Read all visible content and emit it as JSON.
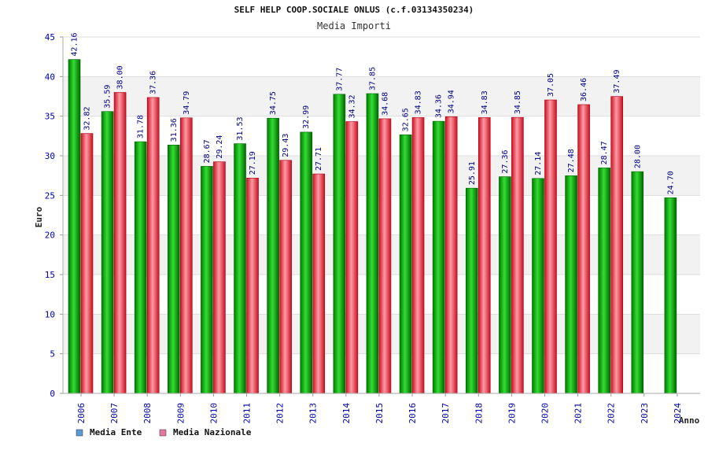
{
  "chart_data": {
    "type": "bar",
    "title": "SELF HELP COOP.SOCIALE ONLUS (c.f.03134350234)",
    "subtitle": "Media Importi",
    "xlabel": "Anno",
    "ylabel": "Euro",
    "ylim": [
      0,
      45
    ],
    "yticks": [
      0,
      5,
      10,
      15,
      20,
      25,
      30,
      35,
      40,
      45
    ],
    "grid": "horizontal bands",
    "legend_position": "bottom-left",
    "categories": [
      "2006",
      "2007",
      "2008",
      "2009",
      "2010",
      "2011",
      "2012",
      "2013",
      "2014",
      "2015",
      "2016",
      "2017",
      "2018",
      "2019",
      "2020",
      "2021",
      "2022",
      "2023",
      "2024"
    ],
    "series": [
      {
        "name": "Media Ente",
        "legend_color": "#5b9bd5",
        "bar_color": "#00aa00",
        "values": [
          42.16,
          35.59,
          31.78,
          31.36,
          28.67,
          31.53,
          34.75,
          32.99,
          37.77,
          37.85,
          32.65,
          34.36,
          25.91,
          27.36,
          27.14,
          27.48,
          28.47,
          28.0,
          24.7
        ],
        "labels": [
          "42.16",
          "35.59",
          "31.78",
          "31.36",
          "28.67",
          "31.53",
          "34.75",
          "32.99",
          "37.77",
          "37.85",
          "32.65",
          "34.36",
          "25.91",
          "27.36",
          "27.14",
          "27.48",
          "28.47",
          "28.00",
          "24.70"
        ]
      },
      {
        "name": "Media Nazionale",
        "legend_color": "#e07aa0",
        "bar_color": "#e02030",
        "values": [
          32.82,
          38.0,
          37.36,
          34.79,
          29.24,
          27.19,
          29.43,
          27.71,
          34.32,
          34.68,
          34.83,
          34.94,
          34.83,
          34.85,
          37.05,
          36.46,
          37.49,
          null,
          null
        ],
        "labels": [
          "32.82",
          "38.00",
          "37.36",
          "34.79",
          "29.24",
          "27.19",
          "29.43",
          "27.71",
          "34.32",
          "34.68",
          "34.83",
          "34.94",
          "34.83",
          "34.85",
          "37.05",
          "36.46",
          "37.49",
          null,
          null
        ]
      }
    ]
  }
}
